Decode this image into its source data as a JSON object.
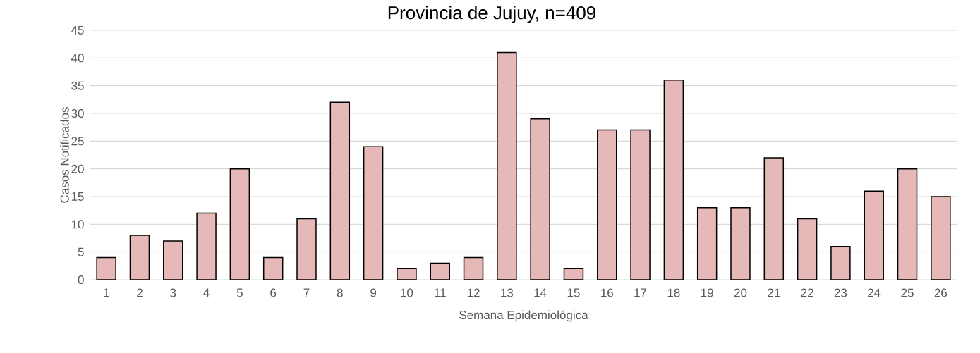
{
  "chart_data": {
    "type": "bar",
    "title": "Provincia de Jujuy, n=409",
    "xlabel": "Semana Epidemiológica",
    "ylabel": "Casos Notificados",
    "categories": [
      "1",
      "2",
      "3",
      "4",
      "5",
      "6",
      "7",
      "8",
      "9",
      "10",
      "11",
      "12",
      "13",
      "14",
      "15",
      "16",
      "17",
      "18",
      "19",
      "20",
      "21",
      "22",
      "23",
      "24",
      "25",
      "26"
    ],
    "values": [
      4,
      8,
      7,
      12,
      20,
      4,
      11,
      32,
      24,
      2,
      3,
      4,
      41,
      29,
      2,
      27,
      27,
      36,
      13,
      13,
      22,
      11,
      6,
      16,
      20,
      15
    ],
    "color": "#e6b8b7",
    "ylim": [
      0,
      45
    ],
    "yticks": [
      0,
      5,
      10,
      15,
      20,
      25,
      30,
      35,
      40,
      45
    ],
    "grid": "y"
  }
}
